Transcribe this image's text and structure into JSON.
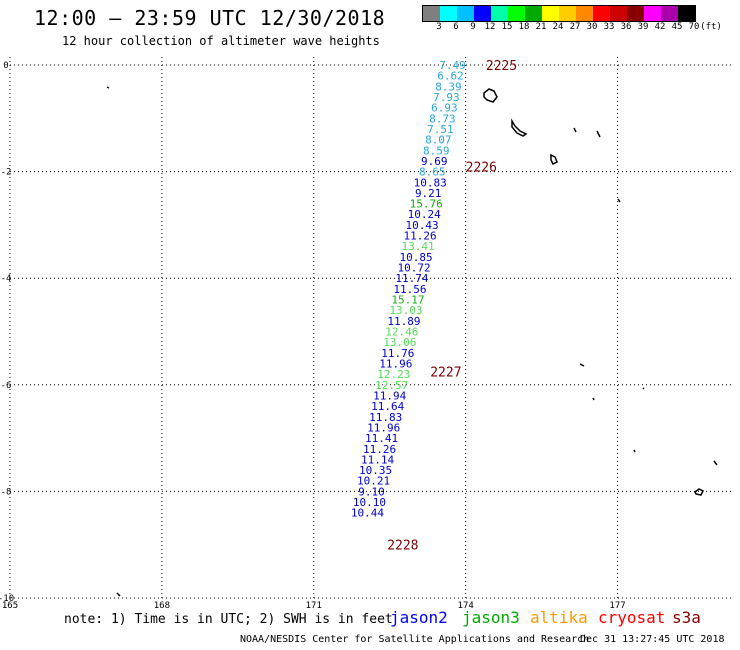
{
  "header": {
    "title": "12:00 – 23:59 UTC 12/30/2018",
    "subtitle": "12 hour collection of altimeter wave heights"
  },
  "legend": {
    "colors": [
      "#7f7f7f",
      "#00ffff",
      "#00c0ff",
      "#0000ff",
      "#00ffaa",
      "#00ff00",
      "#00aa00",
      "#ffff00",
      "#ffcc00",
      "#ff8800",
      "#ff0000",
      "#cc0000",
      "#880000",
      "#ff00ff",
      "#aa00aa",
      "#000000"
    ],
    "labels": [
      "3",
      "6",
      "9",
      "12",
      "15",
      "18",
      "21",
      "24",
      "27",
      "30",
      "33",
      "36",
      "39",
      "42",
      "45",
      "70",
      "(ft)"
    ]
  },
  "axes": {
    "lat_labels": [
      "0",
      "-2",
      "-4",
      "-6",
      "-8",
      "-10"
    ],
    "lon_labels": [
      "165",
      "168",
      "171",
      "174",
      "177"
    ]
  },
  "chart_data": {
    "type": "scatter",
    "x_unit": "degrees longitude",
    "y_unit": "degrees latitude",
    "xlim": [
      165,
      179.3
    ],
    "ylim": [
      -10,
      0.15
    ],
    "orbit_labels": [
      {
        "text": "2225",
        "lon": 174.4,
        "lat": 0.0
      },
      {
        "text": "2226",
        "lon": 174.0,
        "lat": -1.9
      },
      {
        "text": "2227",
        "lon": 173.3,
        "lat": -5.75
      },
      {
        "text": "2228",
        "lon": 172.45,
        "lat": -9.0
      }
    ],
    "points": [
      {
        "value": "7.49",
        "color": "#2aa6d8",
        "lon": 173.74,
        "lat": 0.0
      },
      {
        "value": "6.62",
        "color": "#2aa6d8",
        "lon": 173.7,
        "lat": -0.2
      },
      {
        "value": "8.39",
        "color": "#2aa6d8",
        "lon": 173.66,
        "lat": -0.4
      },
      {
        "value": "7.93",
        "color": "#2aa6d8",
        "lon": 173.62,
        "lat": -0.6
      },
      {
        "value": "6.93",
        "color": "#2aa6d8",
        "lon": 173.58,
        "lat": -0.8
      },
      {
        "value": "8.73",
        "color": "#2aa6d8",
        "lon": 173.54,
        "lat": -1.0
      },
      {
        "value": "7.51",
        "color": "#2aa6d8",
        "lon": 173.5,
        "lat": -1.2
      },
      {
        "value": "8.07",
        "color": "#2aa6d8",
        "lon": 173.46,
        "lat": -1.4
      },
      {
        "value": "8.59",
        "color": "#2aa6d8",
        "lon": 173.42,
        "lat": -1.6
      },
      {
        "value": "9.69",
        "color": "#0000cc",
        "lon": 173.38,
        "lat": -1.8
      },
      {
        "value": "8.65",
        "color": "#2aa6d8",
        "lon": 173.34,
        "lat": -2.0
      },
      {
        "value": "10.83",
        "color": "#0000cc",
        "lon": 173.3,
        "lat": -2.2
      },
      {
        "value": "9.21",
        "color": "#0000cc",
        "lon": 173.26,
        "lat": -2.4
      },
      {
        "value": "15.76",
        "color": "#11aa11",
        "lon": 173.22,
        "lat": -2.6
      },
      {
        "value": "10.24",
        "color": "#0000cc",
        "lon": 173.18,
        "lat": -2.8
      },
      {
        "value": "10.43",
        "color": "#0000cc",
        "lon": 173.14,
        "lat": -3.0
      },
      {
        "value": "11.26",
        "color": "#0000cc",
        "lon": 173.1,
        "lat": -3.2
      },
      {
        "value": "13.41",
        "color": "#55dd55",
        "lon": 173.06,
        "lat": -3.4
      },
      {
        "value": "10.85",
        "color": "#0000cc",
        "lon": 173.02,
        "lat": -3.6
      },
      {
        "value": "10.72",
        "color": "#0000cc",
        "lon": 172.98,
        "lat": -3.8
      },
      {
        "value": "11.74",
        "color": "#0000cc",
        "lon": 172.94,
        "lat": -4.0
      },
      {
        "value": "11.56",
        "color": "#0000cc",
        "lon": 172.9,
        "lat": -4.2
      },
      {
        "value": "15.17",
        "color": "#11aa11",
        "lon": 172.86,
        "lat": -4.4
      },
      {
        "value": "13.03",
        "color": "#55dd55",
        "lon": 172.82,
        "lat": -4.6
      },
      {
        "value": "11.89",
        "color": "#0000cc",
        "lon": 172.78,
        "lat": -4.8
      },
      {
        "value": "12.46",
        "color": "#55dd55",
        "lon": 172.74,
        "lat": -5.0
      },
      {
        "value": "13.06",
        "color": "#55dd55",
        "lon": 172.7,
        "lat": -5.2
      },
      {
        "value": "11.76",
        "color": "#0000cc",
        "lon": 172.66,
        "lat": -5.4
      },
      {
        "value": "11.96",
        "color": "#0000cc",
        "lon": 172.62,
        "lat": -5.6
      },
      {
        "value": "12.23",
        "color": "#55dd55",
        "lon": 172.58,
        "lat": -5.8
      },
      {
        "value": "12.57",
        "color": "#55dd55",
        "lon": 172.54,
        "lat": -6.0
      },
      {
        "value": "11.94",
        "color": "#0000cc",
        "lon": 172.5,
        "lat": -6.2
      },
      {
        "value": "11.64",
        "color": "#0000cc",
        "lon": 172.46,
        "lat": -6.4
      },
      {
        "value": "11.83",
        "color": "#0000cc",
        "lon": 172.42,
        "lat": -6.6
      },
      {
        "value": "11.96",
        "color": "#0000cc",
        "lon": 172.38,
        "lat": -6.8
      },
      {
        "value": "11.41",
        "color": "#0000cc",
        "lon": 172.34,
        "lat": -7.0
      },
      {
        "value": "11.26",
        "color": "#0000cc",
        "lon": 172.3,
        "lat": -7.2
      },
      {
        "value": "11.14",
        "color": "#0000cc",
        "lon": 172.26,
        "lat": -7.4
      },
      {
        "value": "10.35",
        "color": "#0000cc",
        "lon": 172.22,
        "lat": -7.6
      },
      {
        "value": "10.21",
        "color": "#0000cc",
        "lon": 172.18,
        "lat": -7.8
      },
      {
        "value": "9.10",
        "color": "#0000cc",
        "lon": 172.14,
        "lat": -8.0
      },
      {
        "value": "10.10",
        "color": "#0000cc",
        "lon": 172.1,
        "lat": -8.2
      },
      {
        "value": "10.44",
        "color": "#0000cc",
        "lon": 172.06,
        "lat": -8.4
      }
    ]
  },
  "footer": {
    "note": "note: 1) Time is in UTC; 2) SWH is in feet",
    "satellites": [
      {
        "name": "jason2",
        "color": "#0000ff"
      },
      {
        "name": "jason3",
        "color": "#00aa00"
      },
      {
        "name": "altika",
        "color": "#ff9900"
      },
      {
        "name": "cryosat",
        "color": "#ff0000"
      },
      {
        "name": "s3a",
        "color": "#880000"
      }
    ],
    "credit": "NOAA/NESDIS Center for Satellite Applications and Research",
    "timestamp": "Dec 31 13:27:45 UTC 2018"
  }
}
